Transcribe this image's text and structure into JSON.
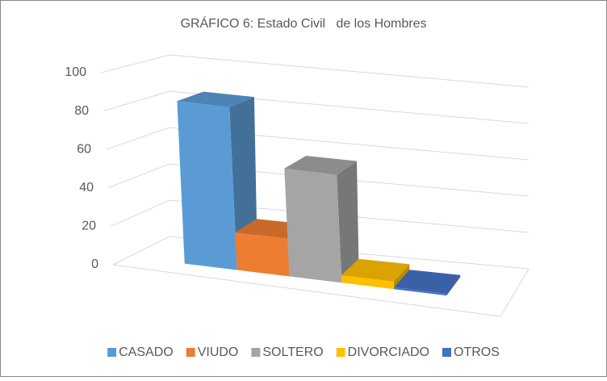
{
  "chart_data": {
    "type": "bar3d",
    "title": "GRÁFICO 6: Estado Civil   de los Hombres",
    "categories": [
      "CASADO",
      "VIUDO",
      "SOLTERO",
      "DIVORCIADO",
      "OTROS"
    ],
    "values": [
      86,
      20,
      57,
      4,
      1
    ],
    "colors": [
      "#5b9bd5",
      "#ed7d31",
      "#a5a5a5",
      "#ffc000",
      "#4472c4"
    ],
    "ylim": [
      0,
      100
    ],
    "yticks": [
      0,
      20,
      40,
      60,
      80,
      100
    ],
    "grid": true,
    "legend": "bottom"
  }
}
